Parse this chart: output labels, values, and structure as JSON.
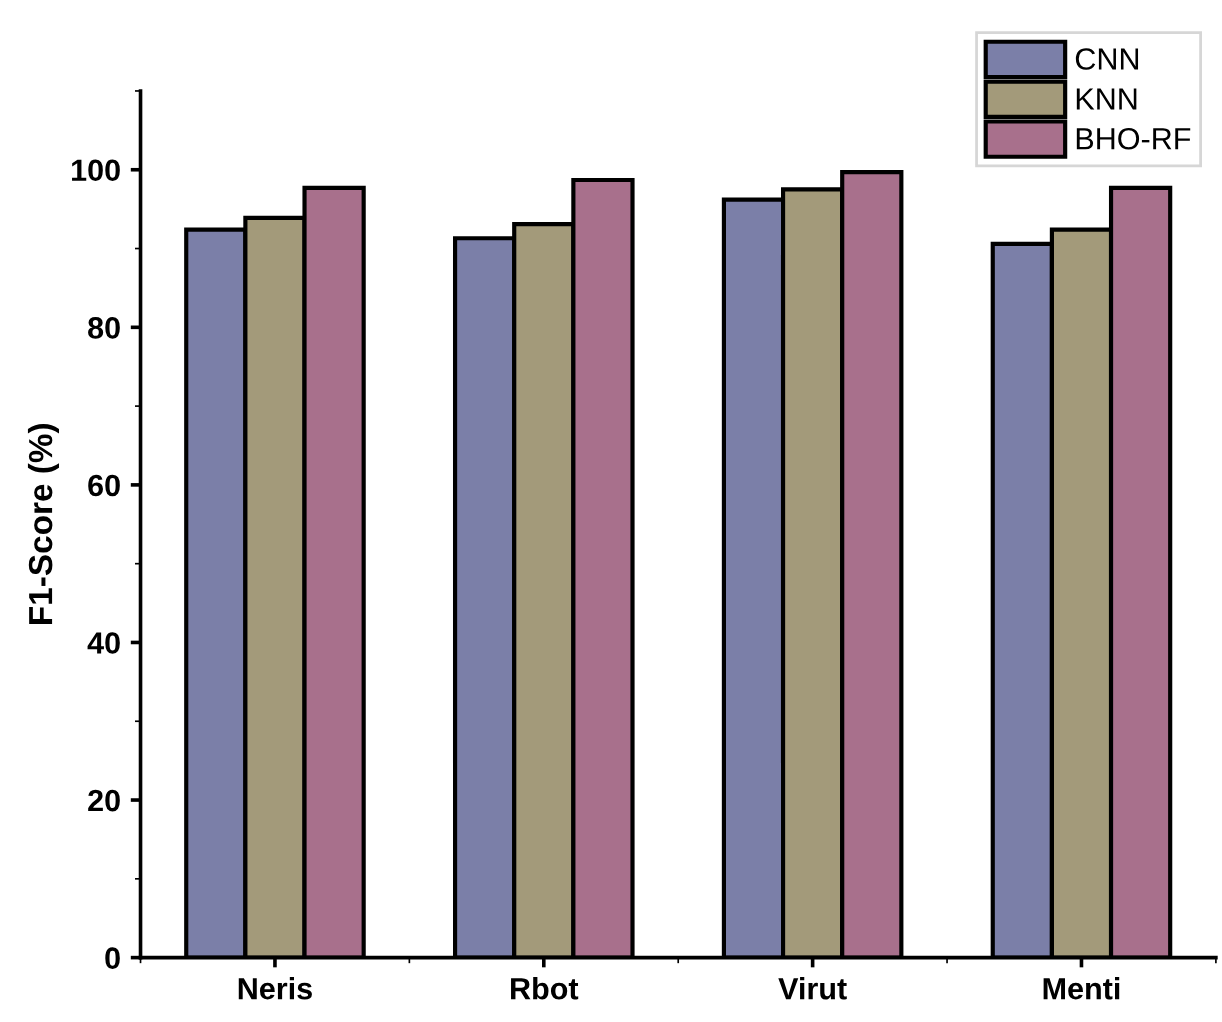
{
  "chart_data": {
    "type": "bar",
    "ylabel": "F1-Score (%)",
    "categories": [
      "Neris",
      "Rbot",
      "Virut",
      "Menti"
    ],
    "series": [
      {
        "name": "CNN",
        "color": "#7b7fa8",
        "values": [
          92.4,
          91.3,
          96.2,
          90.6
        ]
      },
      {
        "name": "KNN",
        "color": "#a39a7a",
        "values": [
          93.9,
          93.1,
          97.5,
          92.4
        ]
      },
      {
        "name": "BHO-RF",
        "color": "#a8708c",
        "values": [
          97.7,
          98.7,
          99.7,
          97.7
        ]
      }
    ],
    "ylim": [
      0,
      110
    ],
    "yticks": [
      0,
      20,
      40,
      60,
      80,
      100
    ],
    "grid": false,
    "legend": "top right"
  }
}
